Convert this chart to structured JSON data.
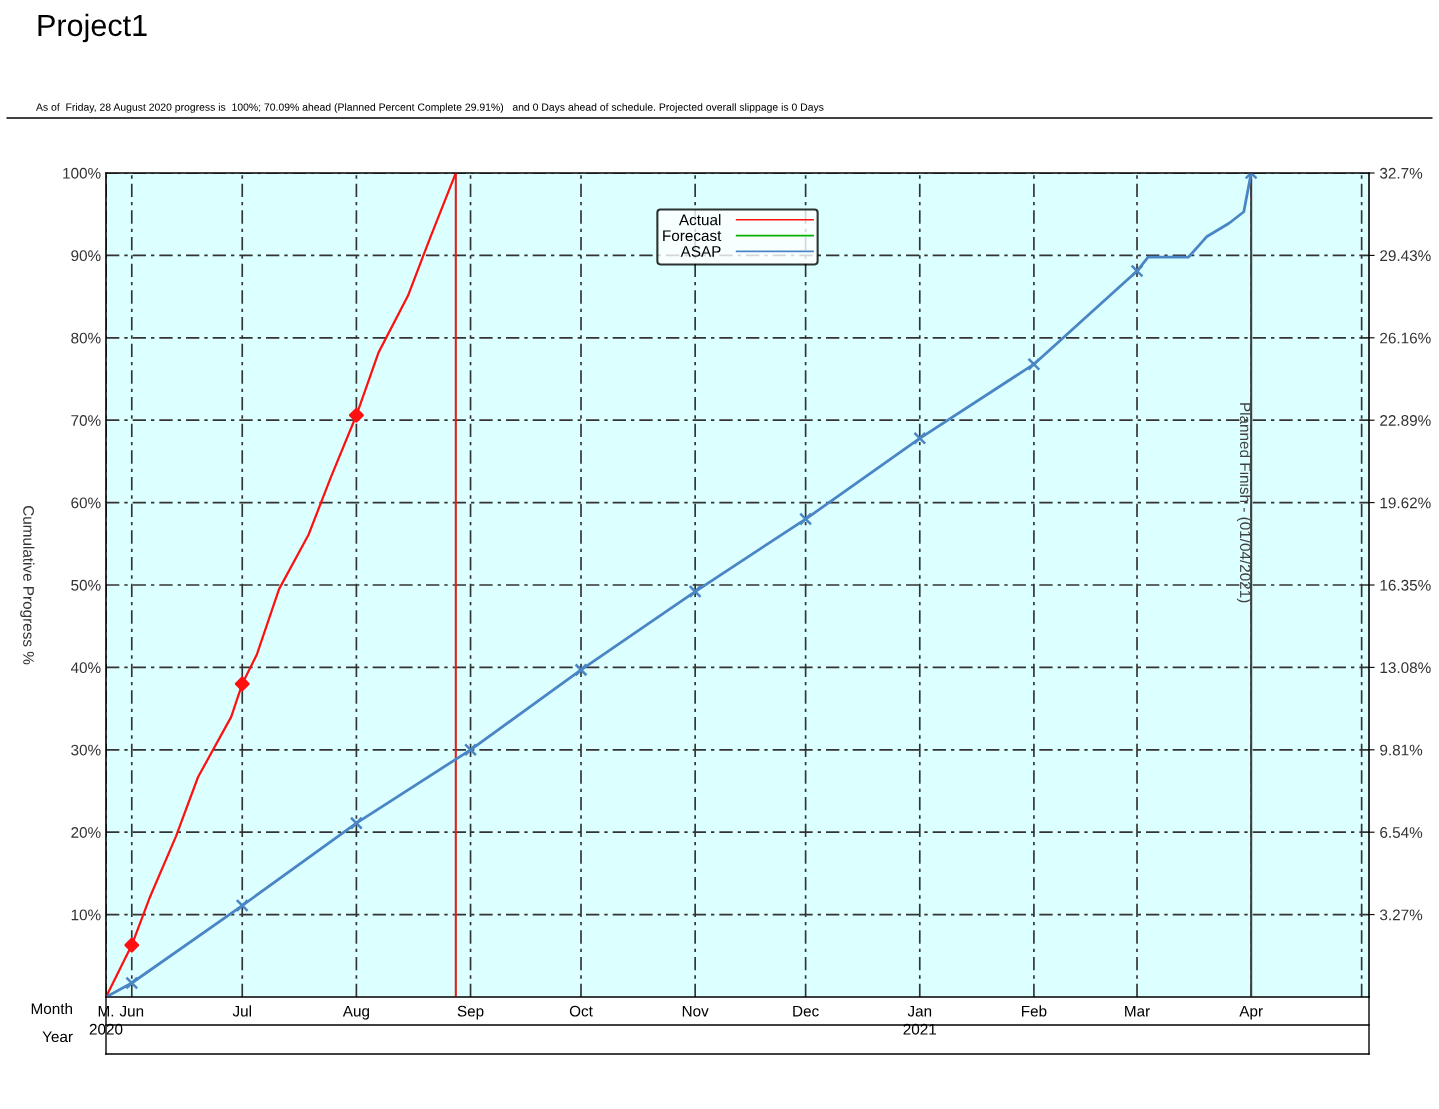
{
  "chart_data": {
    "type": "line",
    "title": "Project1",
    "subtitle": "As of  Friday, 28 August 2020 progress is  100%; 70.09% ahead (Planned Percent Complete 29.91%)   and 0 Days ahead of schedule. Projected overall slippage is 0 Days",
    "xlabel": "Month",
    "x2label": "Year",
    "ylabel": "Cumulative Progress %",
    "xlim": [
      "2020-05-25",
      "2021-05-03"
    ],
    "xticks": [
      {
        "value": "2020-05-25",
        "label": "M."
      },
      {
        "value": "2020-06-01",
        "label": "Jun"
      },
      {
        "value": "2020-07-01",
        "label": "Jul"
      },
      {
        "value": "2020-08-01",
        "label": "Aug"
      },
      {
        "value": "2020-09-01",
        "label": "Sep"
      },
      {
        "value": "2020-10-01",
        "label": "Oct"
      },
      {
        "value": "2020-11-01",
        "label": "Nov"
      },
      {
        "value": "2020-12-01",
        "label": "Dec"
      },
      {
        "value": "2021-01-01",
        "label": "Jan"
      },
      {
        "value": "2021-02-01",
        "label": "Feb"
      },
      {
        "value": "2021-03-01",
        "label": "Mar"
      },
      {
        "value": "2021-04-01",
        "label": "Apr"
      },
      {
        "value": "2021-05-01",
        "label": null
      }
    ],
    "x2lim": [
      "2020-05-25",
      "2021-05-03"
    ],
    "x2ticks": [
      {
        "value": "2020-05-25",
        "label": "2020"
      },
      {
        "value": "2021-01-01",
        "label": "2021"
      }
    ],
    "ylim": [
      0,
      100
    ],
    "yticks": [
      {
        "value": 10,
        "label": "10%"
      },
      {
        "value": 20,
        "label": "20%"
      },
      {
        "value": 30,
        "label": "30%"
      },
      {
        "value": 40,
        "label": "40%"
      },
      {
        "value": 50,
        "label": "50%"
      },
      {
        "value": 60,
        "label": "60%"
      },
      {
        "value": 70,
        "label": "70%"
      },
      {
        "value": 80,
        "label": "80%"
      },
      {
        "value": 90,
        "label": "90%"
      },
      {
        "value": 100,
        "label": "100%"
      }
    ],
    "y2lim": [
      0,
      32.7
    ],
    "y2ticks": [
      {
        "value": 3.27,
        "label": "3.27%"
      },
      {
        "value": 6.54,
        "label": "6.54%"
      },
      {
        "value": 9.81,
        "label": "9.81%"
      },
      {
        "value": 13.08,
        "label": "13.08%"
      },
      {
        "value": 16.35,
        "label": "16.35%"
      },
      {
        "value": 19.62,
        "label": "19.62%"
      },
      {
        "value": 22.89,
        "label": "22.89%"
      },
      {
        "value": 26.16,
        "label": "26.16%"
      },
      {
        "value": 29.43,
        "label": "29.43%"
      },
      {
        "value": 32.7,
        "label": "32.7%"
      }
    ],
    "grid": true,
    "legend": "top",
    "ref_lines": [
      {
        "axis": "x",
        "value": "2020-08-28",
        "color": "#e02020",
        "line_style": "solid"
      },
      {
        "axis": "x",
        "value": "2021-04-01",
        "label": "Planned Finish - (01/04/2021)",
        "color": "#404040",
        "line_style": "solid"
      }
    ],
    "series": [
      {
        "name": "Actual",
        "color": "#ff1010",
        "marker": "none",
        "x": [
          "2020-05-25",
          "2020-06-01",
          "2020-06-06",
          "2020-06-13",
          "2020-06-19",
          "2020-06-28",
          "2020-07-01",
          "2020-07-05",
          "2020-07-11",
          "2020-07-19",
          "2020-07-25",
          "2020-08-01",
          "2020-08-07",
          "2020-08-15",
          "2020-08-21",
          "2020-08-28"
        ],
        "values": [
          0,
          6.3,
          12.2,
          19.5,
          26.7,
          34.0,
          38.0,
          41.6,
          49.5,
          56.1,
          63.0,
          70.6,
          78.2,
          85.1,
          92.1,
          100
        ]
      },
      {
        "name": "Forecast",
        "color": "#00b000"
      },
      {
        "name": "ASAP",
        "color": "#4a86c5",
        "marker": "none",
        "x": [
          "2020-05-25",
          "2020-06-01",
          "2020-07-01",
          "2020-08-01",
          "2020-09-01",
          "2020-10-01",
          "2020-11-01",
          "2020-12-01",
          "2021-01-01",
          "2021-02-01",
          "2021-03-01",
          "2021-03-04",
          "2021-03-15",
          "2021-03-20",
          "2021-03-26",
          "2021-03-30",
          "2021-04-01"
        ],
        "values": [
          0,
          1.7,
          11.1,
          21.1,
          30.0,
          39.7,
          49.2,
          58.0,
          67.8,
          76.8,
          88.1,
          89.8,
          89.8,
          92.3,
          93.9,
          95.3,
          100
        ]
      },
      {
        "type": "scatter",
        "color": "#ff1010",
        "marker": "diamond",
        "x": [
          "2020-06-01",
          "2020-07-01",
          "2020-08-01"
        ],
        "values": [
          6.3,
          38.0,
          70.6
        ]
      },
      {
        "type": "scatter",
        "color": "#4a86c5",
        "marker": "cross",
        "x": [
          "2020-06-01",
          "2020-07-01",
          "2020-08-01",
          "2020-09-01",
          "2020-10-01",
          "2020-11-01",
          "2020-12-01",
          "2021-01-01",
          "2021-02-01",
          "2021-03-01",
          "2021-04-01"
        ],
        "values": [
          1.7,
          11.1,
          21.1,
          30.0,
          39.7,
          49.2,
          58.0,
          67.8,
          76.8,
          88.1,
          100
        ]
      }
    ]
  }
}
